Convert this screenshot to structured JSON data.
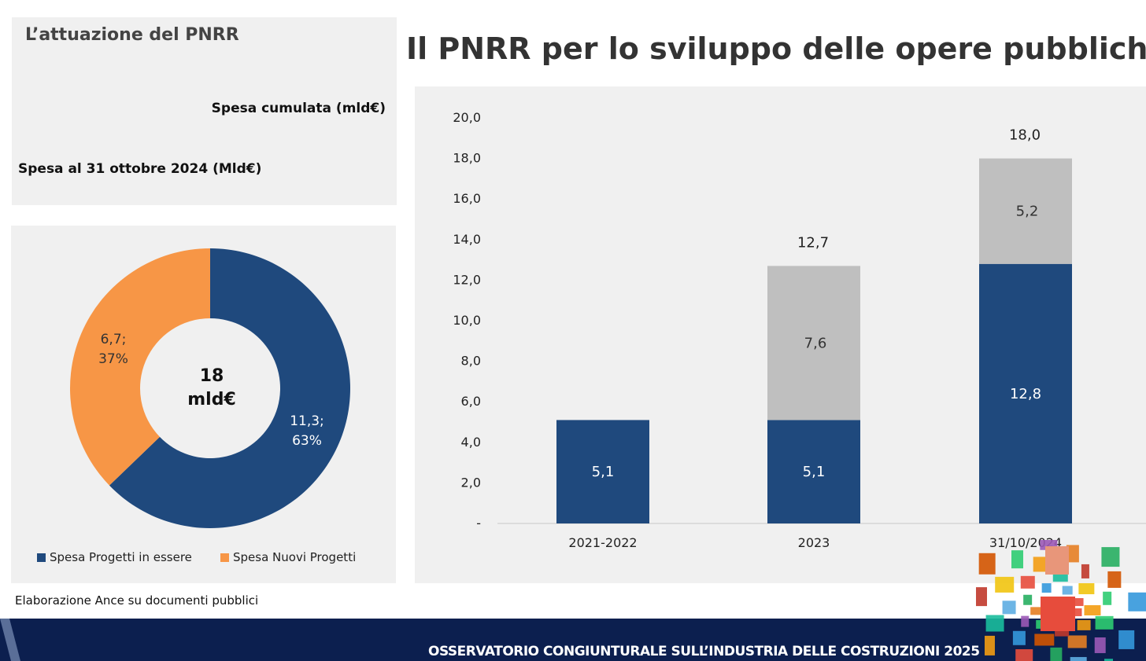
{
  "header": {
    "section_title": "L’attuazione del PNRR",
    "main_title": "Il PNRR per lo sviluppo delle opere pubbliche"
  },
  "labels": {
    "spesa_cumulata": "Spesa cumulata (mld€)",
    "spesa_ottobre": "Spesa al 31 ottobre 2024 (Mld€)"
  },
  "donut": {
    "center_line1": "18",
    "center_line2": "mld€",
    "slice_labels": {
      "blue": [
        "11,3;",
        "63%"
      ],
      "orange": [
        "6,7;",
        "37%"
      ]
    }
  },
  "legend": {
    "blue": "Spesa Progetti in essere",
    "orange": "Spesa Nuovi Progetti"
  },
  "source": "Elaborazione Ance su documenti pubblici",
  "footer": {
    "text": "OSSERVATORIO CONGIUNTURALE SULL’INDUSTRIA DELLE COSTRUZIONI 2025"
  },
  "colors": {
    "blue": "#1f497d",
    "orange": "#f79646",
    "grey": "#bfbfbf",
    "panel": "#f0f0f0",
    "footer": "#0c1f4f"
  },
  "chart_data": [
    {
      "type": "pie",
      "categories": [
        "Spesa Progetti in essere",
        "Spesa Nuovi Progetti"
      ],
      "values": [
        11.3,
        6.7
      ],
      "percentages": [
        63,
        37
      ],
      "center_label": "18 mld€"
    },
    {
      "type": "bar",
      "stacked": true,
      "categories": [
        "2021-2022",
        "2023",
        "31/10/2024"
      ],
      "series": [
        {
          "values": [
            5.1,
            5.1,
            12.8
          ],
          "color": "#1f497d",
          "labels": [
            "5,1",
            "5,1",
            "12,8"
          ]
        },
        {
          "values": [
            0,
            7.6,
            5.2
          ],
          "color": "#bfbfbf",
          "labels": [
            "",
            "7,6",
            "5,2"
          ]
        }
      ],
      "totals": [
        null,
        12.7,
        18.0
      ],
      "total_labels": [
        "",
        "12,7",
        "18,0"
      ],
      "ylim": [
        0,
        20
      ],
      "yticks": [
        "-",
        "2,0",
        "4,0",
        "6,0",
        "8,0",
        "10,0",
        "12,0",
        "14,0",
        "16,0",
        "18,0",
        "20,0"
      ],
      "grid": false
    }
  ]
}
